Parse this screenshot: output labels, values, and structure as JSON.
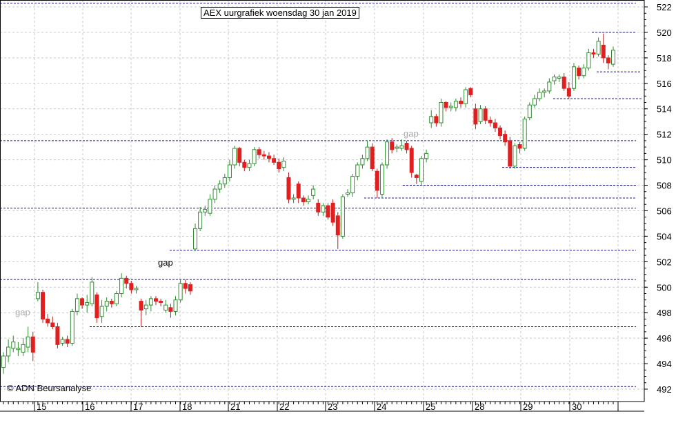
{
  "chart_data": {
    "type": "candlestick",
    "title": "AEX uurgrafiek woensdag 30 jan 2019",
    "y_ticks": [
      492,
      494,
      496,
      498,
      500,
      502,
      504,
      506,
      508,
      510,
      512,
      514,
      516,
      518,
      520,
      522
    ],
    "ylim": [
      491,
      523
    ],
    "x_tick_labels": [
      "15",
      "16",
      "17",
      "18",
      "21",
      "22",
      "23",
      "24",
      "25",
      "28",
      "29",
      "30"
    ],
    "grid": true,
    "annotations": [
      {
        "text": "gap",
        "color": "#aaaaaa"
      },
      {
        "text": "gap",
        "color": "#000000"
      },
      {
        "text": "gap",
        "color": "#aaaaaa"
      }
    ],
    "source": "© ADN Beursanalyse",
    "candles": [
      [
        493.7,
        494.6,
        493.2,
        494.9
      ],
      [
        494.6,
        495.3,
        494.1,
        495.9
      ],
      [
        495.2,
        495.7,
        494.9,
        496.2
      ],
      [
        495.1,
        495.2,
        494.6,
        495.7
      ],
      [
        494.9,
        495.5,
        494.6,
        496.0
      ],
      [
        495.3,
        496.1,
        494.9,
        496.9
      ],
      [
        496.1,
        494.9,
        494.2,
        496.5
      ],
      [
        499.1,
        499.6,
        498.9,
        500.4
      ],
      [
        499.6,
        497.5,
        497.2,
        499.8
      ],
      [
        497.5,
        497.2,
        496.9,
        497.9
      ],
      [
        497.2,
        496.9,
        496.7,
        497.7
      ],
      [
        496.9,
        495.5,
        495.2,
        497.2
      ],
      [
        495.6,
        495.9,
        495.4,
        496.1
      ],
      [
        495.9,
        495.6,
        495.3,
        496.2
      ],
      [
        495.6,
        498.1,
        495.4,
        498.3
      ],
      [
        498.1,
        499.1,
        497.8,
        499.5
      ],
      [
        499.1,
        498.6,
        498.3,
        499.2
      ],
      [
        498.6,
        498.8,
        498.0,
        499.4
      ],
      [
        498.7,
        500.4,
        498.5,
        500.8
      ],
      [
        499.4,
        497.6,
        497.2,
        499.6
      ],
      [
        497.7,
        498.5,
        497.2,
        499.0
      ],
      [
        498.5,
        498.9,
        498.1,
        499.2
      ],
      [
        498.9,
        498.7,
        498.4,
        499.1
      ],
      [
        498.7,
        499.5,
        498.5,
        499.7
      ],
      [
        499.5,
        500.7,
        499.2,
        501.1
      ],
      [
        500.7,
        500.3,
        499.9,
        500.9
      ],
      [
        500.3,
        499.8,
        499.5,
        500.5
      ],
      [
        499.8,
        499.9,
        499.5,
        500.1
      ],
      [
        498.9,
        498.2,
        496.9,
        499.1
      ],
      [
        498.3,
        498.6,
        497.8,
        499.0
      ],
      [
        498.6,
        499.1,
        498.1,
        499.3
      ],
      [
        499.1,
        498.9,
        498.6,
        499.3
      ],
      [
        498.9,
        498.8,
        498.5,
        499.1
      ],
      [
        498.2,
        498.6,
        498.0,
        499.0
      ],
      [
        498.4,
        498.1,
        497.6,
        498.7
      ],
      [
        498.1,
        499.0,
        497.8,
        499.3
      ],
      [
        499.0,
        500.3,
        498.8,
        500.6
      ],
      [
        500.3,
        499.9,
        499.5,
        500.6
      ],
      [
        500.2,
        499.7,
        499.4,
        500.4
      ],
      [
        503.0,
        504.6,
        502.9,
        505.0
      ],
      [
        504.6,
        505.9,
        504.4,
        506.3
      ],
      [
        505.9,
        506.1,
        505.6,
        506.4
      ],
      [
        505.8,
        506.9,
        505.6,
        507.3
      ],
      [
        506.9,
        507.7,
        506.6,
        508.0
      ],
      [
        507.7,
        508.1,
        507.4,
        508.4
      ],
      [
        508.1,
        508.6,
        507.8,
        508.9
      ],
      [
        508.6,
        509.6,
        508.3,
        510.0
      ],
      [
        509.6,
        510.9,
        509.3,
        511.1
      ],
      [
        510.9,
        509.8,
        509.5,
        511.0
      ],
      [
        509.8,
        509.4,
        509.1,
        510.0
      ],
      [
        509.4,
        509.7,
        509.1,
        510.0
      ],
      [
        509.7,
        510.8,
        509.5,
        511.0
      ],
      [
        510.8,
        510.4,
        510.1,
        511.0
      ],
      [
        510.4,
        510.3,
        510.0,
        510.7
      ],
      [
        510.3,
        510.1,
        509.8,
        510.6
      ],
      [
        510.1,
        509.8,
        509.6,
        510.4
      ],
      [
        509.8,
        509.3,
        509.0,
        510.1
      ],
      [
        509.4,
        509.9,
        509.1,
        510.2
      ],
      [
        508.6,
        506.9,
        506.6,
        509.0
      ],
      [
        506.9,
        507.0,
        506.6,
        507.3
      ],
      [
        508.1,
        507.0,
        506.6,
        508.3
      ],
      [
        507.0,
        506.7,
        506.4,
        507.2
      ],
      [
        506.7,
        506.9,
        506.5,
        507.2
      ],
      [
        507.2,
        507.7,
        506.9,
        508.0
      ],
      [
        506.6,
        505.9,
        505.6,
        506.9
      ],
      [
        505.9,
        506.4,
        505.6,
        506.6
      ],
      [
        506.4,
        505.5,
        505.3,
        506.6
      ],
      [
        506.6,
        505.1,
        504.8,
        506.9
      ],
      [
        505.6,
        504.1,
        503.0,
        505.9
      ],
      [
        504.0,
        507.1,
        503.8,
        507.3
      ],
      [
        507.3,
        507.4,
        507.1,
        507.7
      ],
      [
        507.4,
        508.7,
        507.1,
        508.9
      ],
      [
        508.7,
        509.6,
        508.4,
        509.8
      ],
      [
        509.6,
        510.1,
        509.3,
        510.4
      ],
      [
        510.1,
        511.0,
        509.9,
        511.5
      ],
      [
        511.0,
        509.3,
        509.1,
        511.3
      ],
      [
        509.1,
        507.6,
        507.0,
        509.3
      ],
      [
        507.3,
        509.6,
        507.0,
        509.8
      ],
      [
        509.6,
        511.4,
        509.3,
        511.6
      ],
      [
        511.4,
        510.8,
        510.5,
        511.7
      ],
      [
        510.9,
        511.0,
        510.6,
        511.2
      ],
      [
        510.9,
        511.1,
        510.7,
        511.6
      ],
      [
        511.3,
        510.8,
        510.5,
        511.5
      ],
      [
        510.9,
        509.0,
        508.6,
        511.1
      ],
      [
        508.8,
        508.6,
        508.1,
        508.9
      ],
      [
        508.3,
        510.1,
        508.0,
        510.3
      ],
      [
        510.1,
        510.5,
        509.8,
        510.8
      ],
      [
        512.9,
        513.4,
        512.5,
        513.9
      ],
      [
        513.4,
        512.9,
        512.6,
        513.6
      ],
      [
        512.9,
        514.5,
        512.6,
        514.8
      ],
      [
        514.5,
        514.1,
        513.8,
        514.6
      ],
      [
        514.1,
        514.2,
        513.8,
        514.5
      ],
      [
        514.1,
        514.6,
        513.8,
        514.8
      ],
      [
        514.6,
        514.4,
        514.1,
        514.9
      ],
      [
        514.4,
        515.5,
        514.1,
        515.7
      ],
      [
        515.6,
        515.1,
        514.9,
        515.7
      ],
      [
        514.0,
        512.8,
        512.4,
        514.4
      ],
      [
        513.0,
        514.0,
        512.8,
        514.3
      ],
      [
        514.0,
        513.1,
        512.8,
        514.2
      ],
      [
        513.1,
        512.9,
        512.6,
        513.4
      ],
      [
        512.9,
        512.5,
        512.2,
        513.2
      ],
      [
        512.5,
        511.9,
        511.6,
        512.7
      ],
      [
        512.0,
        511.4,
        511.1,
        512.3
      ],
      [
        511.5,
        509.5,
        509.3,
        511.8
      ],
      [
        509.5,
        511.1,
        509.3,
        511.3
      ],
      [
        511.2,
        510.9,
        510.5,
        511.4
      ],
      [
        510.9,
        513.2,
        510.7,
        513.4
      ],
      [
        513.3,
        514.3,
        513.1,
        514.5
      ],
      [
        514.3,
        514.8,
        514.1,
        515.1
      ],
      [
        514.8,
        515.3,
        514.6,
        515.6
      ],
      [
        515.3,
        515.4,
        514.9,
        515.6
      ],
      [
        515.4,
        516.1,
        515.2,
        516.4
      ],
      [
        516.2,
        516.5,
        515.9,
        516.7
      ],
      [
        516.4,
        516.5,
        516.1,
        516.7
      ],
      [
        516.5,
        515.6,
        515.4,
        516.8
      ],
      [
        515.6,
        515.0,
        514.8,
        516.1
      ],
      [
        515.6,
        517.3,
        515.4,
        517.6
      ],
      [
        517.2,
        516.6,
        516.3,
        517.4
      ],
      [
        516.6,
        517.2,
        516.4,
        517.5
      ],
      [
        517.2,
        518.4,
        517.0,
        518.7
      ],
      [
        518.4,
        518.3,
        518.0,
        518.7
      ],
      [
        518.3,
        519.3,
        518.1,
        519.6
      ],
      [
        519.0,
        518.0,
        517.6,
        519.9
      ],
      [
        518.0,
        517.6,
        517.1,
        518.2
      ],
      [
        517.5,
        518.6,
        517.3,
        518.9
      ]
    ],
    "levels": [
      {
        "y": 522.3,
        "from": 0,
        "to": 922,
        "color": "#1a1a8c"
      },
      {
        "y": 520.0,
        "from": 858,
        "to": 922,
        "color": "#1a1a8c"
      },
      {
        "y": 516.9,
        "from": 865,
        "to": 930,
        "color": "#1a1a8c"
      },
      {
        "y": 514.8,
        "from": 802,
        "to": 930,
        "color": "#1a1a8c"
      },
      {
        "y": 511.5,
        "from": 0,
        "to": 922,
        "color": "#1a1a8c"
      },
      {
        "y": 509.4,
        "from": 728,
        "to": 922,
        "color": "#1a1a8c"
      },
      {
        "y": 508.0,
        "from": 584,
        "to": 922,
        "color": "#1a1a8c"
      },
      {
        "y": 507.0,
        "from": 528,
        "to": 922,
        "color": "#1a1a8c"
      },
      {
        "y": 506.2,
        "from": 0,
        "to": 922,
        "color": "#1a1a8c"
      },
      {
        "y": 502.9,
        "from": 246,
        "to": 922,
        "color": "#1a1a8c"
      },
      {
        "y": 500.6,
        "from": 0,
        "to": 922,
        "color": "#1a1a8c"
      },
      {
        "y": 496.9,
        "from": 130,
        "to": 922,
        "color": "#1a1a8c"
      },
      {
        "y": 492.2,
        "from": 0,
        "to": 922,
        "color": "#1a1a8c"
      }
    ],
    "colors": {
      "up": "#2e8b2e",
      "down": "#e02020",
      "special_up": "#1c7a1c"
    }
  }
}
